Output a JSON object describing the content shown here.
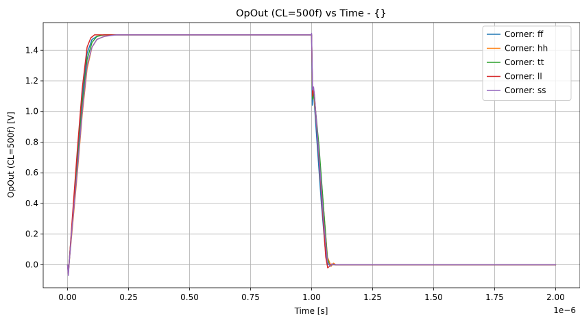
{
  "chart_data": {
    "type": "line",
    "title": "OpOut (CL=500f) vs Time - {}",
    "xlabel": "Time [s]",
    "ylabel": "OpOut (CL=500f) [V]",
    "x_offset_label": "1e−6",
    "xlim": [
      -0.1,
      2.1
    ],
    "ylim": [
      -0.15,
      1.58
    ],
    "x_ticks": [
      0.0,
      0.25,
      0.5,
      0.75,
      1.0,
      1.25,
      1.5,
      1.75,
      2.0
    ],
    "x_tick_labels": [
      "0.00",
      "0.25",
      "0.50",
      "0.75",
      "1.00",
      "1.25",
      "1.50",
      "1.75",
      "2.00"
    ],
    "y_ticks": [
      0.0,
      0.2,
      0.4,
      0.6,
      0.8,
      1.0,
      1.2,
      1.4
    ],
    "y_tick_labels": [
      "0.0",
      "0.2",
      "0.4",
      "0.6",
      "0.8",
      "1.0",
      "1.2",
      "1.4"
    ],
    "grid": true,
    "legend_position": "top-right",
    "series": [
      {
        "name": "Corner: ff",
        "color": "#1f77b4",
        "x": [
          0.0,
          0.003,
          0.008,
          0.02,
          0.04,
          0.06,
          0.08,
          0.1,
          0.12,
          0.15,
          0.2,
          0.5,
          0.999,
          1.0,
          1.003,
          1.006,
          1.01,
          1.02,
          1.04,
          1.055,
          1.065,
          1.075,
          1.085,
          1.1,
          1.5,
          2.0
        ],
        "y": [
          0.0,
          -0.05,
          0.05,
          0.3,
          0.7,
          1.1,
          1.38,
          1.47,
          1.49,
          1.5,
          1.5,
          1.5,
          1.5,
          1.5,
          1.04,
          1.12,
          1.08,
          0.85,
          0.4,
          0.12,
          0.0,
          0.005,
          0.0,
          0.0,
          0.0,
          0.0
        ]
      },
      {
        "name": "Corner: hh",
        "color": "#ff7f0e",
        "x": [
          0.0,
          0.003,
          0.008,
          0.02,
          0.04,
          0.06,
          0.08,
          0.1,
          0.12,
          0.15,
          0.18,
          0.22,
          0.5,
          0.999,
          1.0,
          1.004,
          1.008,
          1.012,
          1.03,
          1.05,
          1.065,
          1.08,
          1.09,
          1.1,
          1.5,
          2.0
        ],
        "y": [
          0.0,
          -0.06,
          0.04,
          0.25,
          0.6,
          0.98,
          1.28,
          1.42,
          1.47,
          1.49,
          1.5,
          1.5,
          1.5,
          1.5,
          1.5,
          1.1,
          1.14,
          1.06,
          0.75,
          0.35,
          0.05,
          -0.01,
          0.01,
          0.0,
          0.0,
          0.0
        ]
      },
      {
        "name": "Corner: tt",
        "color": "#2ca02c",
        "x": [
          0.0,
          0.003,
          0.008,
          0.02,
          0.04,
          0.06,
          0.08,
          0.1,
          0.12,
          0.15,
          0.2,
          0.5,
          0.999,
          1.0,
          1.004,
          1.008,
          1.012,
          1.03,
          1.05,
          1.065,
          1.075,
          1.085,
          1.1,
          1.5,
          2.0
        ],
        "y": [
          0.0,
          -0.05,
          0.05,
          0.28,
          0.65,
          1.05,
          1.34,
          1.45,
          1.49,
          1.5,
          1.5,
          1.5,
          1.5,
          1.5,
          1.08,
          1.13,
          1.08,
          0.78,
          0.35,
          0.04,
          -0.01,
          0.005,
          0.0,
          0.0,
          0.0
        ]
      },
      {
        "name": "Corner: ll",
        "color": "#d62728",
        "x": [
          0.0,
          0.003,
          0.008,
          0.02,
          0.04,
          0.06,
          0.08,
          0.095,
          0.11,
          0.13,
          0.16,
          0.5,
          0.999,
          1.0,
          1.004,
          1.008,
          1.012,
          1.03,
          1.045,
          1.058,
          1.066,
          1.074,
          1.082,
          1.095,
          1.5,
          2.0
        ],
        "y": [
          0.0,
          -0.06,
          0.05,
          0.32,
          0.75,
          1.15,
          1.42,
          1.48,
          1.5,
          1.5,
          1.5,
          1.5,
          1.5,
          1.5,
          1.1,
          1.15,
          1.1,
          0.7,
          0.35,
          0.05,
          -0.02,
          -0.01,
          0.005,
          0.0,
          0.0,
          0.0
        ]
      },
      {
        "name": "Corner: ss",
        "color": "#9467bd",
        "x": [
          0.0,
          0.003,
          0.008,
          0.02,
          0.04,
          0.06,
          0.08,
          0.1,
          0.12,
          0.15,
          0.2,
          0.25,
          0.5,
          0.999,
          1.0,
          1.004,
          1.008,
          1.012,
          1.03,
          1.05,
          1.065,
          1.075,
          1.085,
          1.1,
          1.5,
          2.0
        ],
        "y": [
          0.0,
          -0.07,
          0.04,
          0.27,
          0.62,
          1.0,
          1.3,
          1.42,
          1.47,
          1.49,
          1.5,
          1.5,
          1.5,
          1.5,
          1.51,
          1.14,
          1.16,
          1.1,
          0.72,
          0.28,
          0.02,
          -0.01,
          0.005,
          0.0,
          0.0,
          0.0
        ]
      }
    ]
  }
}
